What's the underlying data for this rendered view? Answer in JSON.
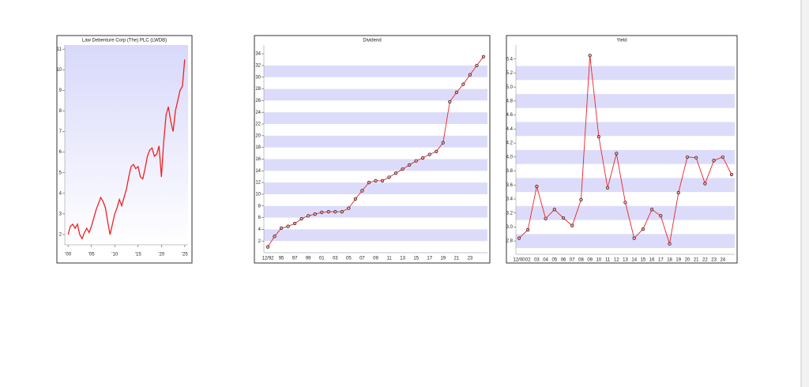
{
  "chart_data": [
    {
      "type": "line",
      "title": "Law Debenture Corp (The) PLC (LWDB)",
      "color": "#ee2222",
      "x": [
        2000,
        2000.5,
        2001,
        2001.5,
        2002,
        2002.5,
        2003,
        2003.5,
        2004,
        2004.5,
        2005,
        2005.5,
        2006,
        2006.5,
        2007,
        2007.5,
        2008,
        2008.5,
        2009,
        2009.5,
        2010,
        2010.5,
        2011,
        2011.5,
        2012,
        2012.5,
        2013,
        2013.5,
        2014,
        2014.5,
        2015,
        2015.5,
        2016,
        2016.5,
        2017,
        2017.5,
        2018,
        2018.5,
        2019,
        2019.5,
        2020,
        2020.5,
        2021,
        2021.5,
        2022,
        2022.5,
        2023,
        2023.5,
        2024,
        2024.5,
        2025
      ],
      "values": [
        2.0,
        2.4,
        2.5,
        2.3,
        2.5,
        2.0,
        1.8,
        2.1,
        2.3,
        2.1,
        2.4,
        2.8,
        3.2,
        3.5,
        3.8,
        3.6,
        3.3,
        2.6,
        2.0,
        2.5,
        3.0,
        3.3,
        3.7,
        3.4,
        3.8,
        4.2,
        4.8,
        5.3,
        5.4,
        5.2,
        5.3,
        4.8,
        4.7,
        5.2,
        5.8,
        6.1,
        6.2,
        5.8,
        5.9,
        6.3,
        4.8,
        6.5,
        7.8,
        8.2,
        7.5,
        7.0,
        8.0,
        8.5,
        9.0,
        9.2,
        10.5
      ],
      "xlim": [
        1999.8,
        2025.2
      ],
      "xticks": [
        {
          "value": 2000,
          "label": "'00"
        },
        {
          "value": 2005,
          "label": "'05"
        },
        {
          "value": 2010,
          "label": "'10"
        },
        {
          "value": 2015,
          "label": "'15"
        },
        {
          "value": 2020,
          "label": "'20"
        },
        {
          "value": 2025,
          "label": "'25"
        }
      ],
      "ylim": [
        1.5,
        11.2
      ],
      "yticks": [
        2,
        3,
        4,
        5,
        6,
        7,
        8,
        9,
        10,
        11
      ]
    },
    {
      "type": "line",
      "title": "Dividend",
      "color": "#ee2222",
      "markers": true,
      "grid": true,
      "categories": [
        "12/92",
        null,
        "95",
        null,
        "97",
        null,
        "99",
        null,
        "01",
        null,
        "03",
        null,
        "05",
        null,
        "07",
        null,
        "09",
        null,
        "11",
        null,
        "13",
        null,
        "15",
        null,
        "17",
        null,
        "19",
        null,
        "21",
        null,
        "23",
        null,
        null
      ],
      "values": [
        1.0,
        2.8,
        4.2,
        4.5,
        5.0,
        5.8,
        6.3,
        6.6,
        6.9,
        7.0,
        7.0,
        7.0,
        7.6,
        9.2,
        10.6,
        12.0,
        12.3,
        12.3,
        12.9,
        13.6,
        14.3,
        15.0,
        15.7,
        16.2,
        16.8,
        17.3,
        18.8,
        25.8,
        27.4,
        28.8,
        30.4,
        32.0,
        33.5
      ],
      "ylim": [
        0,
        35.5
      ],
      "yticks": [
        2,
        4,
        6,
        8,
        10,
        12,
        14,
        16,
        18,
        20,
        22,
        24,
        26,
        28,
        30,
        32,
        34
      ]
    },
    {
      "type": "line",
      "title": "Yield",
      "color": "#ee2222",
      "markers": true,
      "grid": true,
      "categories": [
        "12/00",
        "02",
        "03",
        "04",
        "05",
        "06",
        "07",
        "08",
        "09",
        "10",
        "11",
        "12",
        "13",
        "14",
        "15",
        "16",
        "17",
        "18",
        "19",
        "20",
        "21",
        "22",
        "23",
        "24",
        null
      ],
      "values": [
        2.84,
        2.96,
        3.58,
        3.12,
        3.25,
        3.13,
        3.02,
        3.39,
        5.45,
        4.29,
        3.56,
        4.05,
        3.35,
        2.84,
        2.97,
        3.25,
        3.16,
        2.76,
        3.49,
        4.0,
        3.99,
        3.62,
        3.95,
        4.0,
        3.75
      ],
      "ylim": [
        2.61,
        5.6
      ],
      "yticks": [
        {
          "value": 2.8,
          "label": "2.8"
        },
        {
          "value": 3,
          "label": "3.0"
        },
        {
          "value": 3.2,
          "label": "3.2"
        },
        {
          "value": 3.4,
          "label": "3.4"
        },
        {
          "value": 3.6,
          "label": "3.6"
        },
        {
          "value": 3.8,
          "label": "3.8"
        },
        {
          "value": 4,
          "label": "4.0"
        },
        {
          "value": 4.2,
          "label": "4.2"
        },
        {
          "value": 4.4,
          "label": "4.4"
        },
        {
          "value": 4.6,
          "label": "4.6"
        },
        {
          "value": 4.8,
          "label": "4.8"
        },
        {
          "value": 5,
          "label": "5.0"
        },
        {
          "value": 5.2,
          "label": "5.2"
        },
        {
          "value": 5.4,
          "label": "5.4"
        }
      ]
    }
  ]
}
